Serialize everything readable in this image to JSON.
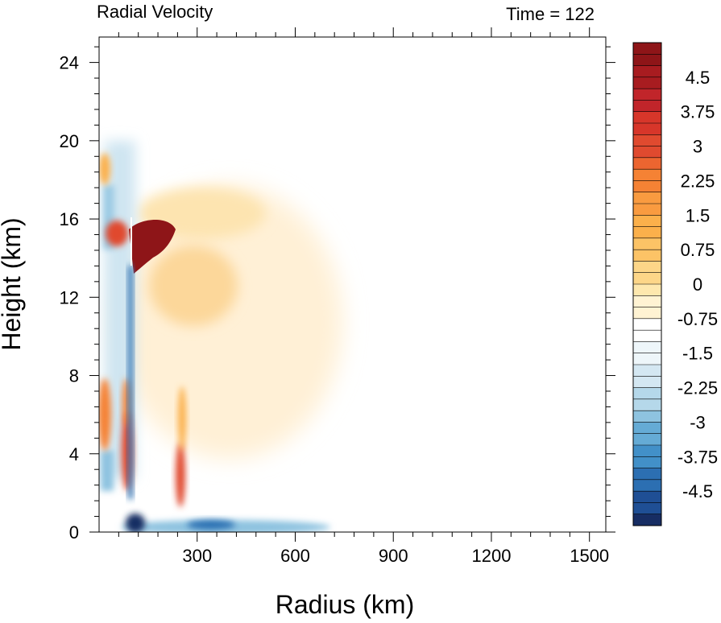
{
  "chart_data": {
    "type": "heatmap",
    "title_left": "Radial Velocity",
    "title_right": "Time = 122",
    "xlabel": "Radius (km)",
    "ylabel": "Height (km)",
    "xlim": [
      0,
      1550
    ],
    "ylim": [
      0,
      25.3
    ],
    "x_ticks": [
      300,
      600,
      900,
      1200,
      1500
    ],
    "x_tick_labels": [
      "300",
      "600",
      "900",
      "1200",
      "1500"
    ],
    "y_ticks": [
      0,
      4,
      8,
      12,
      16,
      20,
      24
    ],
    "y_tick_labels": [
      "0",
      "4",
      "8",
      "12",
      "16",
      "20",
      "24"
    ],
    "colorbar": {
      "min": -5.25,
      "max": 5.25,
      "step": 0.25,
      "labels": [
        "4.5",
        "3.75",
        "3",
        "2.25",
        "1.5",
        "0.75",
        "0",
        "-0.75",
        "-1.5",
        "-2.25",
        "-3",
        "-3.75",
        "-4.5"
      ],
      "label_values": [
        4.5,
        3.75,
        3,
        2.25,
        1.5,
        0.75,
        0,
        -0.75,
        -1.5,
        -2.25,
        -3,
        -3.75,
        -4.5
      ],
      "colors_high_to_low": [
        "#8e1518",
        "#a81c20",
        "#c1252a",
        "#d7362a",
        "#e04a2f",
        "#ec6530",
        "#f58234",
        "#f99b40",
        "#fbb04b",
        "#fcc366",
        "#fdd688",
        "#fee8ae",
        "#fff3d3",
        "#ffffff",
        "#eef6fa",
        "#d4e7f2",
        "#b5d8ea",
        "#8ec3e0",
        "#65abd5",
        "#4290c8",
        "#2c6fb2",
        "#1f4f95",
        "#172d63"
      ]
    },
    "features": [
      {
        "name": "upper-level outflow maximum",
        "x": [
          110,
          210
        ],
        "y": [
          13.5,
          15.8
        ],
        "value": 5.0
      },
      {
        "name": "outflow plume",
        "x": [
          200,
          480
        ],
        "y": [
          11,
          17
        ],
        "value": 1.0
      },
      {
        "name": "lower outflow region",
        "x": [
          200,
          600
        ],
        "y": [
          6,
          14
        ],
        "value": 0.8
      },
      {
        "name": "boundary-layer inflow",
        "x": [
          80,
          650
        ],
        "y": [
          0,
          1.2
        ],
        "value": -3.0
      },
      {
        "name": "eyewall inflow column",
        "x": [
          95,
          115
        ],
        "y": [
          0,
          12
        ],
        "value": -4.5
      },
      {
        "name": "low-level outflow band",
        "x": [
          90,
          110
        ],
        "y": [
          2.5,
          7
        ],
        "value": 3.5
      },
      {
        "name": "secondary outflow band",
        "x": [
          240,
          265
        ],
        "y": [
          2,
          5
        ],
        "value": 3.0
      }
    ]
  }
}
